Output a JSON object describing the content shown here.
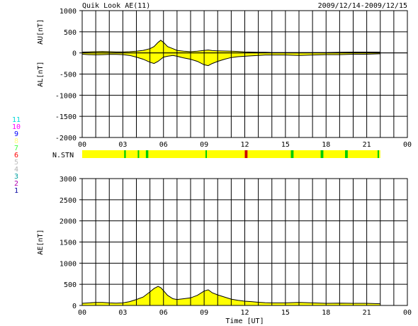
{
  "header": {
    "title": "Quik Look AE(11)",
    "date_range": "2009/12/14-2009/12/15"
  },
  "station_legend": [
    {
      "label": "11",
      "color": "#00d8d8"
    },
    {
      "label": "10",
      "color": "#ff00ff"
    },
    {
      "label": "9",
      "color": "#0000ff"
    },
    {
      "label": "8",
      "color": "#ffff80"
    },
    {
      "label": "7",
      "color": "#40ff40"
    },
    {
      "label": "6",
      "color": "#ff0000"
    },
    {
      "label": "5",
      "color": "#c0c0c0"
    },
    {
      "label": "4",
      "color": "#b0b0b0"
    },
    {
      "label": "3",
      "color": "#00a0a0"
    },
    {
      "label": "2",
      "color": "#b000b0"
    },
    {
      "label": "1",
      "color": "#0000a0"
    }
  ],
  "colors": {
    "fill": "#ffff00",
    "grid": "#000000",
    "station_bar_base": "#ffff00",
    "station_green": "#00cc00",
    "station_red": "#cc0000"
  },
  "chart_data": [
    {
      "id": "au_al",
      "type": "area",
      "ylabel_upper": "AU[nT]",
      "ylabel_lower": "AL[nT]",
      "ylim": [
        -2000,
        1000
      ],
      "yticks": [
        -2000,
        -1500,
        -1000,
        -500,
        0,
        500,
        1000
      ],
      "xlim": [
        0,
        24
      ],
      "xticks": [
        "00",
        "03",
        "06",
        "09",
        "12",
        "15",
        "18",
        "21",
        "00"
      ],
      "grid": true,
      "series": [
        {
          "name": "AU",
          "x": [
            0,
            0.5,
            1,
            1.5,
            2,
            2.5,
            3,
            3.5,
            4,
            4.5,
            5,
            5.3,
            5.6,
            5.8,
            6,
            6.3,
            6.7,
            7,
            7.5,
            8,
            8.5,
            9,
            9.3,
            9.6,
            10,
            10.5,
            11,
            11.5,
            12,
            12.5,
            13,
            13.5,
            14,
            15,
            16,
            17,
            18,
            19,
            20,
            21,
            22
          ],
          "y": [
            20,
            25,
            30,
            35,
            30,
            25,
            25,
            30,
            40,
            60,
            100,
            150,
            250,
            300,
            250,
            150,
            100,
            60,
            40,
            30,
            40,
            60,
            70,
            55,
            50,
            45,
            40,
            35,
            25,
            20,
            15,
            15,
            10,
            10,
            10,
            10,
            10,
            15,
            20,
            20,
            20
          ]
        },
        {
          "name": "AL",
          "x": [
            0,
            0.5,
            1,
            1.5,
            2,
            2.5,
            3,
            3.5,
            4,
            4.5,
            5,
            5.3,
            5.6,
            5.8,
            6,
            6.3,
            6.7,
            7,
            7.5,
            8,
            8.5,
            9,
            9.3,
            9.6,
            10,
            10.5,
            11,
            11.5,
            12,
            12.5,
            13,
            13.5,
            14,
            15,
            16,
            17,
            18,
            19,
            20,
            21,
            22
          ],
          "y": [
            -30,
            -40,
            -45,
            -40,
            -35,
            -35,
            -40,
            -60,
            -100,
            -150,
            -220,
            -250,
            -200,
            -150,
            -100,
            -80,
            -60,
            -80,
            -120,
            -150,
            -200,
            -280,
            -300,
            -250,
            -200,
            -150,
            -110,
            -90,
            -80,
            -70,
            -60,
            -50,
            -50,
            -50,
            -60,
            -50,
            -40,
            -40,
            -30,
            -30,
            -20
          ]
        }
      ]
    },
    {
      "id": "stations",
      "type": "heatmap",
      "label": "N.STN",
      "xlim": [
        0,
        24
      ],
      "marks": [
        {
          "x": 3.1,
          "w": 0.12,
          "level": "green"
        },
        {
          "x": 4.1,
          "w": 0.08,
          "level": "green"
        },
        {
          "x": 4.7,
          "w": 0.18,
          "level": "green"
        },
        {
          "x": 9.1,
          "w": 0.08,
          "level": "green"
        },
        {
          "x": 12.0,
          "w": 0.2,
          "level": "red"
        },
        {
          "x": 15.4,
          "w": 0.2,
          "level": "green"
        },
        {
          "x": 17.6,
          "w": 0.2,
          "level": "green"
        },
        {
          "x": 19.4,
          "w": 0.2,
          "level": "green"
        },
        {
          "x": 21.8,
          "w": 0.1,
          "level": "green"
        }
      ],
      "end": 22
    },
    {
      "id": "ae",
      "type": "area",
      "ylabel": "AE[nT]",
      "xlabel": "Time [UT]",
      "ylim": [
        0,
        3000
      ],
      "yticks": [
        0,
        500,
        1000,
        1500,
        2000,
        2500,
        3000
      ],
      "xlim": [
        0,
        24
      ],
      "xticks": [
        "00",
        "03",
        "06",
        "09",
        "12",
        "15",
        "18",
        "21",
        "00"
      ],
      "grid": true,
      "series": [
        {
          "name": "AE",
          "x": [
            0,
            0.5,
            1,
            1.5,
            2,
            2.5,
            3,
            3.5,
            4,
            4.5,
            5,
            5.3,
            5.6,
            5.8,
            6,
            6.3,
            6.7,
            7,
            7.5,
            8,
            8.5,
            9,
            9.3,
            9.6,
            10,
            10.5,
            11,
            11.5,
            12,
            12.5,
            13,
            13.5,
            14,
            15,
            16,
            17,
            18,
            19,
            20,
            21,
            22
          ],
          "y": [
            50,
            60,
            70,
            70,
            60,
            55,
            60,
            90,
            140,
            200,
            320,
            400,
            450,
            420,
            350,
            240,
            160,
            140,
            160,
            180,
            240,
            340,
            370,
            300,
            250,
            200,
            150,
            120,
            100,
            90,
            75,
            65,
            60,
            60,
            70,
            60,
            50,
            55,
            50,
            50,
            40
          ]
        }
      ]
    }
  ]
}
